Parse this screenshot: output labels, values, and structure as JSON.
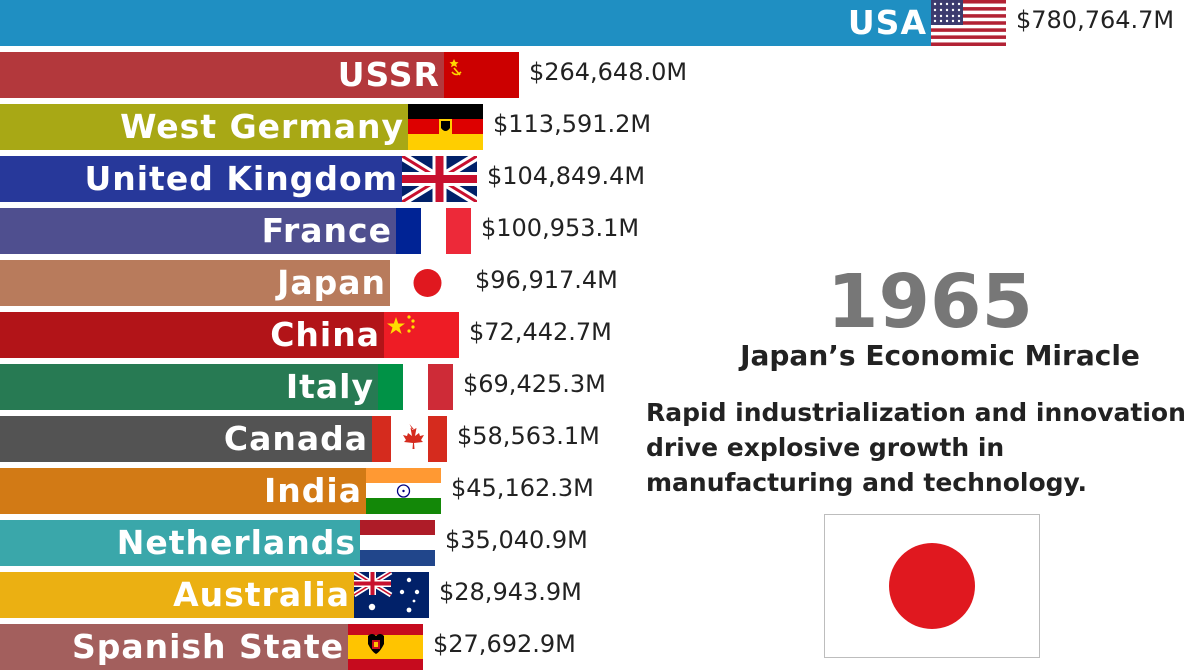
{
  "chart_data": {
    "type": "bar",
    "orientation": "horizontal",
    "title": "",
    "xlabel": "",
    "ylabel": "",
    "unit_prefix": "$",
    "unit_suffix": "M",
    "categories": [
      "USA",
      "USSR",
      "West Germany",
      "United Kingdom",
      "France",
      "Japan",
      "China",
      "Italy",
      "Canada",
      "India",
      "Netherlands",
      "Australia",
      "Spanish State"
    ],
    "values": [
      780764.7,
      264648.0,
      113591.2,
      104849.4,
      100953.1,
      96917.4,
      72442.7,
      69425.3,
      58563.1,
      45162.3,
      35040.9,
      28943.9,
      27692.9
    ],
    "value_labels": [
      "$780,764.7M",
      "$264,648.0M",
      "$113,591.2M",
      "$104,849.4M",
      "$100,953.1M",
      "$96,917.4M",
      "$72,442.7M",
      "$69,425.3M",
      "$58,563.1M",
      "$45,162.3M",
      "$35,040.9M",
      "$28,943.9M",
      "$27,692.9M"
    ],
    "bar_colors": [
      "#1f8fc2",
      "#b3383c",
      "#a8a815",
      "#27389a",
      "#4f4f8f",
      "#b87b5c",
      "#b21418",
      "#277a53",
      "#535353",
      "#d27a15",
      "#3aa7aa",
      "#ebb012",
      "#a35f5d"
    ],
    "flags": [
      "usa-flag",
      "ussr-flag",
      "west-germany-flag",
      "united-kingdom-flag",
      "france-flag",
      "japan-flag",
      "china-flag",
      "italy-flag",
      "canada-flag",
      "india-flag",
      "netherlands-flag",
      "australia-flag",
      "spanish-state-flag"
    ],
    "grid": false,
    "legend": "none"
  },
  "annotation": {
    "year": "1965",
    "event_title": "Japan’s Economic Miracle",
    "event_description": "Rapid industrialization and innovation drive explosive growth in manufacturing and technology.",
    "event_flag": "japan-flag"
  }
}
